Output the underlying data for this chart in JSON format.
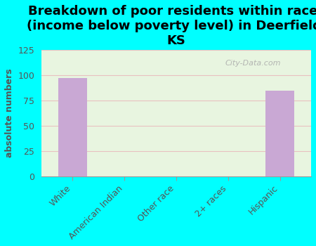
{
  "title": "Breakdown of poor residents within races\n(income below poverty level) in Deerfield,\nKS",
  "categories": [
    "White",
    "American Indian",
    "Other race",
    "2+ races",
    "Hispanic"
  ],
  "values": [
    97,
    0,
    0,
    0,
    85
  ],
  "bar_color": "#c9a8d4",
  "ylabel": "absolute numbers",
  "ylim": [
    0,
    125
  ],
  "yticks": [
    0,
    25,
    50,
    75,
    100,
    125
  ],
  "background_color": "#00ffff",
  "plot_bg_color": "#e8f5e0",
  "watermark": "City-Data.com",
  "title_fontsize": 13,
  "ylabel_fontsize": 9,
  "tick_fontsize": 9,
  "label_color": "#555555",
  "title_color": "#000000"
}
